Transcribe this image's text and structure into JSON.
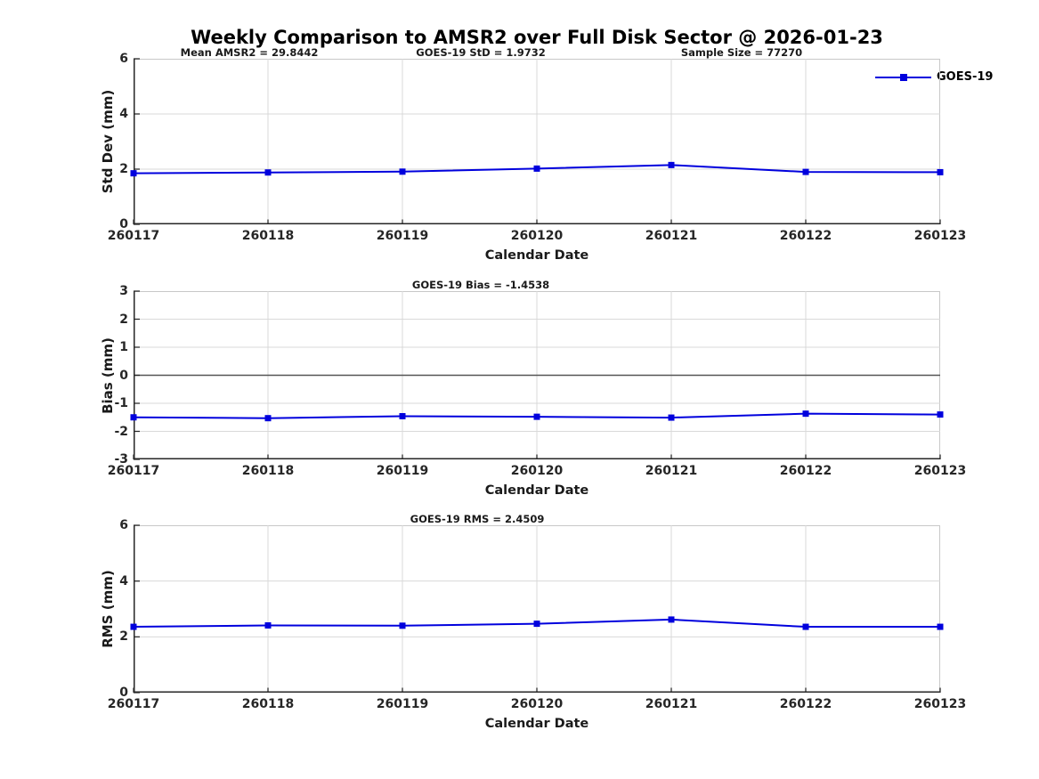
{
  "figure": {
    "title": "Weekly Comparison to AMSR2 over Full Disk Sector @ 2026-01-23",
    "legend": {
      "label": "GOES-19"
    },
    "colors": {
      "line": "#0000dd",
      "grid": "#d9d9d9",
      "axis_dark": "#262626",
      "box_light": "#c8c8c8",
      "zero_line": "#555555"
    }
  },
  "chart_data": [
    {
      "type": "line",
      "ylabel": "Std Dev (mm)",
      "xlabel": "Calendar Date",
      "categories": [
        "260117",
        "260118",
        "260119",
        "260120",
        "260121",
        "260122",
        "260123"
      ],
      "yticks": [
        0,
        2,
        4,
        6
      ],
      "ylim": [
        0,
        6
      ],
      "grid": true,
      "zero_line": false,
      "annotations": [
        "Mean AMSR2 = 29.8442",
        "GOES-19 StD = 1.9732",
        "Sample Size = 77270"
      ],
      "legend_position": "top-right-outside",
      "series": [
        {
          "name": "GOES-19",
          "values": [
            1.85,
            1.88,
            1.91,
            2.02,
            2.15,
            1.9,
            1.89
          ]
        }
      ]
    },
    {
      "type": "line",
      "ylabel": "Bias (mm)",
      "xlabel": "Calendar Date",
      "categories": [
        "260117",
        "260118",
        "260119",
        "260120",
        "260121",
        "260122",
        "260123"
      ],
      "yticks": [
        -3,
        -2,
        -1,
        0,
        1,
        2,
        3
      ],
      "ylim": [
        -3,
        3
      ],
      "grid": true,
      "zero_line": true,
      "annotations": [
        "GOES-19 Bias  = -1.4538"
      ],
      "series": [
        {
          "name": "GOES-19",
          "values": [
            -1.5,
            -1.53,
            -1.46,
            -1.48,
            -1.51,
            -1.37,
            -1.4
          ]
        }
      ]
    },
    {
      "type": "line",
      "ylabel": "RMS (mm)",
      "xlabel": "Calendar Date",
      "categories": [
        "260117",
        "260118",
        "260119",
        "260120",
        "260121",
        "260122",
        "260123"
      ],
      "yticks": [
        0,
        2,
        4,
        6
      ],
      "ylim": [
        0,
        6
      ],
      "grid": true,
      "zero_line": false,
      "annotations": [
        "GOES-19 RMS = 2.4509"
      ],
      "series": [
        {
          "name": "GOES-19",
          "values": [
            2.36,
            2.41,
            2.4,
            2.47,
            2.62,
            2.36,
            2.36
          ]
        }
      ]
    }
  ]
}
